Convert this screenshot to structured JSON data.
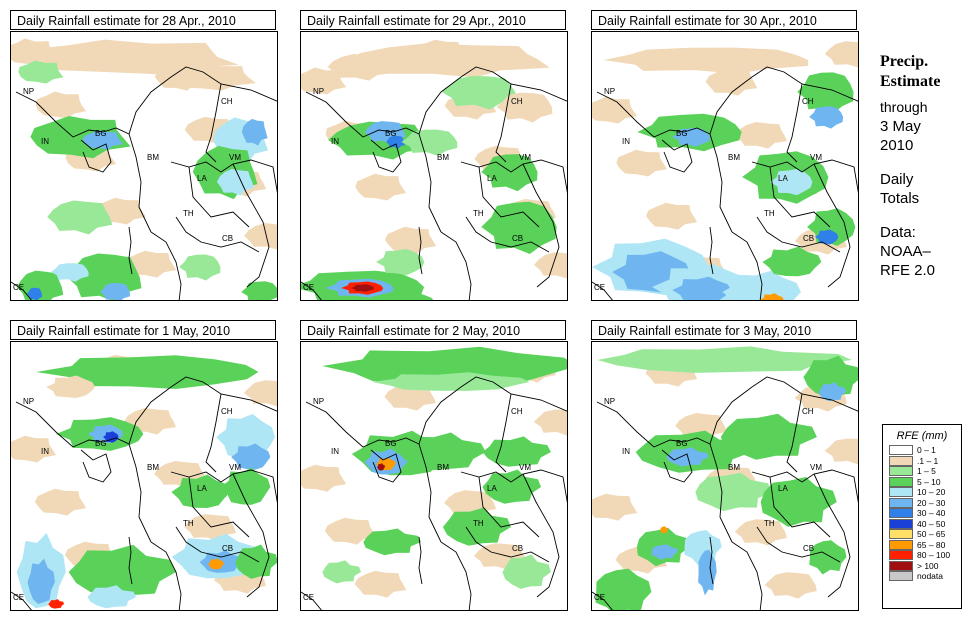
{
  "panels": [
    {
      "title": "Daily Rainfall estimate for  28 Apr., 2010"
    },
    {
      "title": "Daily Rainfall estimate for  29 Apr., 2010"
    },
    {
      "title": "Daily Rainfall estimate for  30 Apr., 2010"
    },
    {
      "title": "Daily Rainfall estimate for  1 May, 2010"
    },
    {
      "title": "Daily Rainfall estimate for  2 May, 2010"
    },
    {
      "title": "Daily Rainfall estimate for  3 May, 2010"
    }
  ],
  "country_labels": {
    "np": "NP",
    "in": "IN",
    "bg": "BG",
    "ch": "CH",
    "bm": "BM",
    "vm": "VM",
    "la": "LA",
    "th": "TH",
    "cb": "CB",
    "ce": "CE"
  },
  "sidebar": {
    "title1": "Precip.",
    "title2": "Estimate",
    "through": "through",
    "date1": "3 May",
    "date2": "2010",
    "daily1": "Daily",
    "daily2": "Totals",
    "data1": "Data:",
    "data2": "NOAA–",
    "data3": "RFE 2.0"
  },
  "legend": {
    "title": "RFE (mm)",
    "items": [
      {
        "label": "0 – 1",
        "color": "#ffffff"
      },
      {
        "label": ".1 – 1",
        "color": "#f1d9b8"
      },
      {
        "label": "1 – 5",
        "color": "#98e898"
      },
      {
        "label": "5 – 10",
        "color": "#5ad25a"
      },
      {
        "label": "10 – 20",
        "color": "#aee6f5"
      },
      {
        "label": "20 – 30",
        "color": "#6fb6f0"
      },
      {
        "label": "30 – 40",
        "color": "#2f80e8"
      },
      {
        "label": "40 – 50",
        "color": "#1a40d8"
      },
      {
        "label": "50 – 65",
        "color": "#ffe066"
      },
      {
        "label": "65 – 80",
        "color": "#ff9a00"
      },
      {
        "label": "80 – 100",
        "color": "#ff2000"
      },
      {
        "label": "> 100",
        "color": "#a01010"
      },
      {
        "label": "nodata",
        "color": "#c8c8c8"
      }
    ]
  }
}
